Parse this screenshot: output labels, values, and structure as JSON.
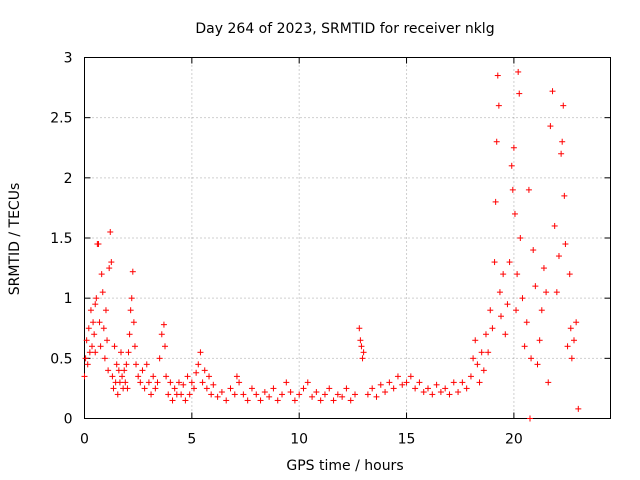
{
  "chart_data": {
    "type": "scatter",
    "title": "Day 264 of 2023, SRMTID for receiver nklg",
    "xlabel": "GPS time / hours",
    "ylabel": "SRMTID / TECUs",
    "xlim": [
      0,
      24.5
    ],
    "ylim": [
      0,
      3
    ],
    "xticks": [
      0,
      5,
      10,
      15,
      20
    ],
    "xtick_labels": [
      "0",
      "5",
      "10",
      "15",
      "20"
    ],
    "yticks": [
      0,
      0.5,
      1,
      1.5,
      2,
      2.5,
      3
    ],
    "ytick_labels": [
      "0",
      "0.5",
      "1",
      "1.5",
      "2",
      "2.5",
      "3"
    ],
    "grid": true,
    "marker": "+",
    "series": [
      {
        "name": "SRMTID",
        "color": "#ff0000",
        "points": [
          [
            0.0,
            0.35
          ],
          [
            0.05,
            0.5
          ],
          [
            0.1,
            0.65
          ],
          [
            0.15,
            0.45
          ],
          [
            0.2,
            0.75
          ],
          [
            0.25,
            0.55
          ],
          [
            0.3,
            0.9
          ],
          [
            0.35,
            0.6
          ],
          [
            0.4,
            0.8
          ],
          [
            0.45,
            0.7
          ],
          [
            0.5,
            0.95
          ],
          [
            0.5,
            0.55
          ],
          [
            0.55,
            1.0
          ],
          [
            0.6,
            1.45
          ],
          [
            0.65,
            1.45
          ],
          [
            0.7,
            0.8
          ],
          [
            0.75,
            0.6
          ],
          [
            0.8,
            1.2
          ],
          [
            0.85,
            1.05
          ],
          [
            0.9,
            0.75
          ],
          [
            0.95,
            0.5
          ],
          [
            1.0,
            0.9
          ],
          [
            1.05,
            0.65
          ],
          [
            1.1,
            0.4
          ],
          [
            1.15,
            1.25
          ],
          [
            1.2,
            1.55
          ],
          [
            1.25,
            1.3
          ],
          [
            1.3,
            0.35
          ],
          [
            1.35,
            0.25
          ],
          [
            1.4,
            0.6
          ],
          [
            1.45,
            0.3
          ],
          [
            1.5,
            0.45
          ],
          [
            1.55,
            0.2
          ],
          [
            1.6,
            0.4
          ],
          [
            1.65,
            0.3
          ],
          [
            1.7,
            0.55
          ],
          [
            1.75,
            0.35
          ],
          [
            1.8,
            0.25
          ],
          [
            1.85,
            0.4
          ],
          [
            1.9,
            0.3
          ],
          [
            1.95,
            0.45
          ],
          [
            2.0,
            0.25
          ],
          [
            2.05,
            0.55
          ],
          [
            2.1,
            0.7
          ],
          [
            2.15,
            0.9
          ],
          [
            2.2,
            1.0
          ],
          [
            2.25,
            1.22
          ],
          [
            2.3,
            0.8
          ],
          [
            2.35,
            0.6
          ],
          [
            2.4,
            0.45
          ],
          [
            2.5,
            0.35
          ],
          [
            2.6,
            0.3
          ],
          [
            2.7,
            0.4
          ],
          [
            2.8,
            0.25
          ],
          [
            2.9,
            0.45
          ],
          [
            3.0,
            0.3
          ],
          [
            3.1,
            0.2
          ],
          [
            3.2,
            0.35
          ],
          [
            3.3,
            0.25
          ],
          [
            3.4,
            0.3
          ],
          [
            3.5,
            0.5
          ],
          [
            3.6,
            0.7
          ],
          [
            3.7,
            0.78
          ],
          [
            3.75,
            0.6
          ],
          [
            3.8,
            0.35
          ],
          [
            3.9,
            0.2
          ],
          [
            4.0,
            0.3
          ],
          [
            4.1,
            0.15
          ],
          [
            4.2,
            0.25
          ],
          [
            4.3,
            0.2
          ],
          [
            4.4,
            0.3
          ],
          [
            4.5,
            0.2
          ],
          [
            4.6,
            0.28
          ],
          [
            4.7,
            0.15
          ],
          [
            4.8,
            0.35
          ],
          [
            4.9,
            0.2
          ],
          [
            5.0,
            0.3
          ],
          [
            5.1,
            0.25
          ],
          [
            5.2,
            0.38
          ],
          [
            5.3,
            0.45
          ],
          [
            5.4,
            0.55
          ],
          [
            5.5,
            0.3
          ],
          [
            5.6,
            0.4
          ],
          [
            5.7,
            0.25
          ],
          [
            5.8,
            0.35
          ],
          [
            5.9,
            0.2
          ],
          [
            6.0,
            0.28
          ],
          [
            6.2,
            0.18
          ],
          [
            6.4,
            0.22
          ],
          [
            6.6,
            0.15
          ],
          [
            6.8,
            0.25
          ],
          [
            7.0,
            0.2
          ],
          [
            7.1,
            0.35
          ],
          [
            7.2,
            0.3
          ],
          [
            7.4,
            0.2
          ],
          [
            7.6,
            0.15
          ],
          [
            7.8,
            0.25
          ],
          [
            8.0,
            0.2
          ],
          [
            8.2,
            0.15
          ],
          [
            8.4,
            0.22
          ],
          [
            8.6,
            0.18
          ],
          [
            8.8,
            0.25
          ],
          [
            9.0,
            0.15
          ],
          [
            9.2,
            0.2
          ],
          [
            9.4,
            0.3
          ],
          [
            9.6,
            0.22
          ],
          [
            9.8,
            0.15
          ],
          [
            10.0,
            0.2
          ],
          [
            10.2,
            0.25
          ],
          [
            10.4,
            0.3
          ],
          [
            10.6,
            0.18
          ],
          [
            10.8,
            0.22
          ],
          [
            11.0,
            0.15
          ],
          [
            11.2,
            0.2
          ],
          [
            11.4,
            0.25
          ],
          [
            11.6,
            0.15
          ],
          [
            11.8,
            0.2
          ],
          [
            12.0,
            0.18
          ],
          [
            12.2,
            0.25
          ],
          [
            12.4,
            0.15
          ],
          [
            12.6,
            0.2
          ],
          [
            12.8,
            0.75
          ],
          [
            12.85,
            0.65
          ],
          [
            12.9,
            0.6
          ],
          [
            12.95,
            0.5
          ],
          [
            13.0,
            0.55
          ],
          [
            13.2,
            0.2
          ],
          [
            13.4,
            0.25
          ],
          [
            13.6,
            0.18
          ],
          [
            13.8,
            0.28
          ],
          [
            14.0,
            0.22
          ],
          [
            14.2,
            0.3
          ],
          [
            14.4,
            0.25
          ],
          [
            14.6,
            0.35
          ],
          [
            14.8,
            0.28
          ],
          [
            15.0,
            0.3
          ],
          [
            15.2,
            0.35
          ],
          [
            15.4,
            0.25
          ],
          [
            15.6,
            0.3
          ],
          [
            15.8,
            0.22
          ],
          [
            16.0,
            0.25
          ],
          [
            16.2,
            0.2
          ],
          [
            16.4,
            0.28
          ],
          [
            16.6,
            0.22
          ],
          [
            16.8,
            0.25
          ],
          [
            17.0,
            0.2
          ],
          [
            17.2,
            0.3
          ],
          [
            17.4,
            0.22
          ],
          [
            17.6,
            0.3
          ],
          [
            17.8,
            0.25
          ],
          [
            18.0,
            0.35
          ],
          [
            18.1,
            0.5
          ],
          [
            18.2,
            0.65
          ],
          [
            18.3,
            0.45
          ],
          [
            18.4,
            0.3
          ],
          [
            18.5,
            0.55
          ],
          [
            18.6,
            0.4
          ],
          [
            18.7,
            0.7
          ],
          [
            18.8,
            0.55
          ],
          [
            18.9,
            0.9
          ],
          [
            19.0,
            0.75
          ],
          [
            19.1,
            1.3
          ],
          [
            19.15,
            1.8
          ],
          [
            19.2,
            2.3
          ],
          [
            19.25,
            2.85
          ],
          [
            19.3,
            2.6
          ],
          [
            19.35,
            1.05
          ],
          [
            19.4,
            0.85
          ],
          [
            19.5,
            1.2
          ],
          [
            19.6,
            0.7
          ],
          [
            19.7,
            0.95
          ],
          [
            19.8,
            1.3
          ],
          [
            19.9,
            2.1
          ],
          [
            19.95,
            1.9
          ],
          [
            20.0,
            2.25
          ],
          [
            20.05,
            1.7
          ],
          [
            20.1,
            0.9
          ],
          [
            20.15,
            1.2
          ],
          [
            20.2,
            2.88
          ],
          [
            20.25,
            2.7
          ],
          [
            20.3,
            1.5
          ],
          [
            20.4,
            1.0
          ],
          [
            20.5,
            0.6
          ],
          [
            20.6,
            0.8
          ],
          [
            20.7,
            1.9
          ],
          [
            20.75,
            0.0
          ],
          [
            20.8,
            0.5
          ],
          [
            20.9,
            1.4
          ],
          [
            21.0,
            1.1
          ],
          [
            21.1,
            0.45
          ],
          [
            21.2,
            0.65
          ],
          [
            21.3,
            0.9
          ],
          [
            21.4,
            1.25
          ],
          [
            21.5,
            1.05
          ],
          [
            21.6,
            0.3
          ],
          [
            21.7,
            2.43
          ],
          [
            21.8,
            2.72
          ],
          [
            21.9,
            1.6
          ],
          [
            22.0,
            1.05
          ],
          [
            22.1,
            1.35
          ],
          [
            22.2,
            2.2
          ],
          [
            22.25,
            2.3
          ],
          [
            22.3,
            2.6
          ],
          [
            22.35,
            1.85
          ],
          [
            22.4,
            1.45
          ],
          [
            22.5,
            0.6
          ],
          [
            22.6,
            1.2
          ],
          [
            22.65,
            0.75
          ],
          [
            22.7,
            0.5
          ],
          [
            22.8,
            0.65
          ],
          [
            22.9,
            0.8
          ],
          [
            23.0,
            0.08
          ]
        ]
      }
    ]
  }
}
